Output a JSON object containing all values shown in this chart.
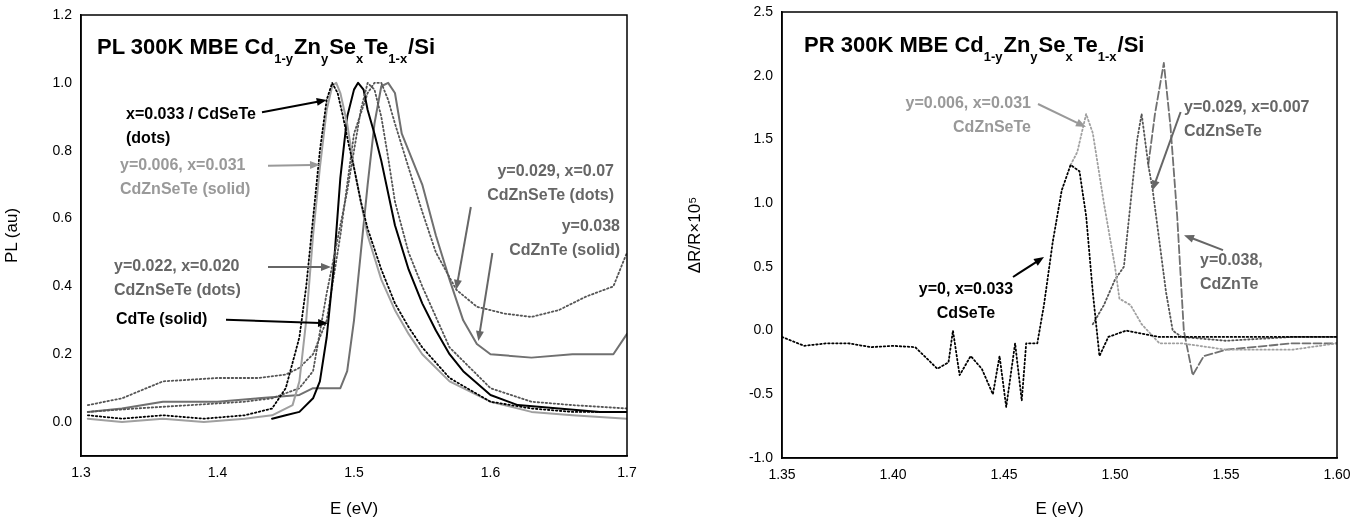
{
  "chart_data": [
    {
      "type": "line",
      "title": "PL 300K MBE Cd$_{1-y}$Zn$_{y}$Se$_{x}$Te$_{1-x}$/Si",
      "xlabel": "E (eV)",
      "ylabel": "PL (au)",
      "xlim": [
        1.3,
        1.7
      ],
      "xticks": [
        1.3,
        1.4,
        1.5,
        1.6,
        1.7
      ],
      "ylim": [
        -0.1,
        1.2
      ],
      "yticks": [
        {
          "value": 0,
          "label": "0.0"
        },
        0.2,
        0.4,
        0.6,
        0.8,
        {
          "value": 1,
          "label": "1.0"
        },
        1.2
      ],
      "grid": false,
      "legend": false,
      "marker": "none",
      "series": [
        {
          "color": "#000000",
          "line_style": "dotted",
          "x": [
            1.305,
            1.33,
            1.36,
            1.39,
            1.42,
            1.44,
            1.45,
            1.46,
            1.465,
            1.47,
            1.475,
            1.48,
            1.484,
            1.488,
            1.492,
            1.496,
            1.5,
            1.505,
            1.51,
            1.52,
            1.53,
            1.54,
            1.55,
            1.57,
            1.6,
            1.63,
            1.66,
            1.7
          ],
          "values": [
            0.02,
            0.01,
            0.02,
            0.01,
            0.02,
            0.04,
            0.1,
            0.25,
            0.4,
            0.6,
            0.8,
            0.95,
            1.0,
            0.97,
            0.9,
            0.82,
            0.75,
            0.65,
            0.57,
            0.45,
            0.35,
            0.28,
            0.22,
            0.13,
            0.06,
            0.04,
            0.03,
            0.03
          ]
        },
        {
          "color": "#a0a0a0",
          "line_style": "solid",
          "x": [
            1.305,
            1.33,
            1.36,
            1.39,
            1.42,
            1.44,
            1.455,
            1.46,
            1.465,
            1.47,
            1.475,
            1.48,
            1.484,
            1.487,
            1.49,
            1.495,
            1.5,
            1.505,
            1.51,
            1.52,
            1.53,
            1.54,
            1.55,
            1.57,
            1.6,
            1.63,
            1.66,
            1.7
          ],
          "values": [
            0.01,
            0.0,
            0.01,
            0.0,
            0.01,
            0.02,
            0.05,
            0.12,
            0.3,
            0.55,
            0.75,
            0.92,
            0.99,
            1.0,
            0.97,
            0.88,
            0.75,
            0.65,
            0.55,
            0.42,
            0.33,
            0.26,
            0.2,
            0.12,
            0.06,
            0.03,
            0.02,
            0.01
          ]
        },
        {
          "color": "#555555",
          "line_style": "dotted",
          "x": [
            1.305,
            1.34,
            1.38,
            1.42,
            1.44,
            1.46,
            1.47,
            1.48,
            1.485,
            1.49,
            1.495,
            1.5,
            1.505,
            1.51,
            1.515,
            1.52,
            1.525,
            1.53,
            1.54,
            1.55,
            1.57,
            1.6,
            1.63,
            1.66,
            1.7
          ],
          "values": [
            0.03,
            0.04,
            0.05,
            0.06,
            0.07,
            0.1,
            0.15,
            0.38,
            0.48,
            0.58,
            0.68,
            0.8,
            0.92,
            1.0,
            0.98,
            0.9,
            0.78,
            0.65,
            0.5,
            0.4,
            0.22,
            0.1,
            0.06,
            0.05,
            0.04
          ]
        },
        {
          "color": "#000000",
          "line_style": "solid",
          "x": [
            1.44,
            1.45,
            1.46,
            1.47,
            1.475,
            1.48,
            1.485,
            1.49,
            1.495,
            1.5,
            1.503,
            1.507,
            1.51,
            1.515,
            1.52,
            1.53,
            1.54,
            1.55,
            1.56,
            1.57,
            1.58,
            1.6,
            1.62,
            1.65,
            1.68,
            1.7
          ],
          "values": [
            0.01,
            0.02,
            0.03,
            0.07,
            0.12,
            0.25,
            0.45,
            0.72,
            0.9,
            0.98,
            1.0,
            0.98,
            0.92,
            0.85,
            0.77,
            0.58,
            0.45,
            0.35,
            0.27,
            0.2,
            0.15,
            0.08,
            0.05,
            0.04,
            0.03,
            0.03
          ]
        },
        {
          "color": "#555555",
          "line_style": "dotted",
          "x": [
            1.305,
            1.33,
            1.36,
            1.4,
            1.43,
            1.45,
            1.46,
            1.47,
            1.48,
            1.49,
            1.5,
            1.51,
            1.515,
            1.52,
            1.525,
            1.53,
            1.54,
            1.55,
            1.56,
            1.575,
            1.59,
            1.61,
            1.63,
            1.65,
            1.67,
            1.69,
            1.7
          ],
          "values": [
            0.05,
            0.07,
            0.12,
            0.13,
            0.13,
            0.14,
            0.16,
            0.2,
            0.3,
            0.55,
            0.85,
            0.97,
            1.0,
            1.0,
            0.95,
            0.88,
            0.75,
            0.62,
            0.5,
            0.39,
            0.34,
            0.32,
            0.31,
            0.33,
            0.37,
            0.4,
            0.5
          ]
        },
        {
          "color": "#707070",
          "line_style": "solid",
          "x": [
            1.305,
            1.33,
            1.36,
            1.4,
            1.43,
            1.46,
            1.47,
            1.48,
            1.49,
            1.495,
            1.5,
            1.505,
            1.51,
            1.515,
            1.52,
            1.525,
            1.53,
            1.535,
            1.54,
            1.55,
            1.56,
            1.57,
            1.58,
            1.59,
            1.6,
            1.63,
            1.66,
            1.69,
            1.7
          ],
          "values": [
            0.03,
            0.04,
            0.06,
            0.06,
            0.07,
            0.08,
            0.1,
            0.1,
            0.1,
            0.15,
            0.3,
            0.5,
            0.7,
            0.88,
            0.99,
            1.0,
            0.97,
            0.85,
            0.8,
            0.7,
            0.55,
            0.42,
            0.3,
            0.23,
            0.2,
            0.19,
            0.2,
            0.2,
            0.26
          ]
        }
      ],
      "annotations": [
        {
          "text": "x=0.033 / CdSeTe\n(dots)",
          "x": 1.48,
          "y": 0.95
        },
        "y=0.006, x=0.031\nCdZnSeTe (solid)",
        "y=0.022, x=0.020\nCdZnSeTe (dots)",
        {
          "text": "CdTe (solid)",
          "x": 1.481,
          "y": 0.29
        },
        {
          "text": "y=0.029, x=0.07\nCdZnSeTe (dots)",
          "x": 1.575,
          "y": 0.39
        },
        "y=0.038\nCdZnTe (solid)"
      ]
    },
    {
      "type": "line",
      "title": "PR 300K MBE Cd$_{1-y}$Zn$_{y}$Se$_{x}$Te$_{1-x}$/Si",
      "xlabel": "E (eV)",
      "ylabel": "ΔR/R×10⁵",
      "xlim": [
        1.35,
        1.6
      ],
      "xticks": [
        {
          "value": 1.35,
          "label": "1.35"
        },
        {
          "value": 1.4,
          "label": "1.40"
        },
        {
          "value": 1.45,
          "label": "1.45"
        },
        {
          "value": 1.5,
          "label": "1.50"
        },
        {
          "value": 1.55,
          "label": "1.55"
        },
        {
          "value": 1.6,
          "label": "1.60"
        }
      ],
      "ylim": [
        -1.0,
        2.5
      ],
      "yticks": [
        {
          "value": -1,
          "label": "-1.0"
        },
        -0.5,
        {
          "value": 0,
          "label": "0.0"
        },
        0.5,
        {
          "value": 1,
          "label": "1.0"
        },
        1.5,
        {
          "value": 2,
          "label": "2.0"
        },
        2.5
      ],
      "grid": false,
      "legend": false,
      "marker": "none",
      "series": [
        {
          "color": "#000000",
          "line_style": "dotted",
          "x": [
            1.35,
            1.36,
            1.37,
            1.38,
            1.39,
            1.4,
            1.41,
            1.42,
            1.425,
            1.427,
            1.43,
            1.435,
            1.44,
            1.445,
            1.448,
            1.451,
            1.455,
            1.458,
            1.46,
            1.465,
            1.468,
            1.472,
            1.476,
            1.48,
            1.484,
            1.487,
            1.49,
            1.493,
            1.497,
            1.505,
            1.52,
            1.55,
            1.58,
            1.6
          ],
          "values": [
            -0.05,
            -0.12,
            -0.1,
            -0.1,
            -0.13,
            -0.12,
            -0.13,
            -0.3,
            -0.25,
            0.0,
            -0.35,
            -0.2,
            -0.3,
            -0.5,
            -0.2,
            -0.6,
            -0.1,
            -0.55,
            -0.1,
            -0.1,
            0.2,
            0.7,
            1.1,
            1.3,
            1.25,
            0.9,
            0.3,
            -0.2,
            -0.05,
            0.0,
            -0.05,
            -0.05,
            -0.05,
            -0.05
          ]
        },
        {
          "color": "#a0a0a0",
          "line_style": "dotted",
          "x": [
            1.48,
            1.483,
            1.487,
            1.49,
            1.495,
            1.5,
            1.502,
            1.507,
            1.512,
            1.52,
            1.53,
            1.55,
            1.58,
            1.6
          ],
          "values": [
            1.3,
            1.4,
            1.7,
            1.55,
            1.0,
            0.5,
            0.25,
            0.2,
            0.05,
            -0.1,
            -0.1,
            -0.15,
            -0.15,
            -0.1
          ]
        },
        {
          "color": "#555555",
          "line_style": "dotted",
          "x": [
            1.49,
            1.495,
            1.5,
            1.504,
            1.507,
            1.51,
            1.512,
            1.515,
            1.517,
            1.52,
            1.523,
            1.526,
            1.53,
            1.55,
            1.58,
            1.6
          ],
          "values": [
            0.05,
            0.2,
            0.4,
            0.5,
            1.0,
            1.5,
            1.7,
            1.3,
            1.1,
            0.7,
            0.3,
            0.0,
            -0.05,
            -0.08,
            -0.05,
            -0.05
          ]
        },
        {
          "color": "#707070",
          "line_style": "dashed",
          "x": [
            1.515,
            1.518,
            1.522,
            1.525,
            1.528,
            1.531,
            1.535,
            1.54,
            1.55,
            1.58,
            1.6
          ],
          "values": [
            1.3,
            1.7,
            2.1,
            1.6,
            0.9,
            0.0,
            -0.35,
            -0.2,
            -0.15,
            -0.1,
            -0.1
          ]
        }
      ],
      "annotations": [
        "y=0.006, x=0.031\nCdZnSeTe",
        {
          "text": "y=0.029, x=0.007\nCdZnSeTe",
          "x": 1.517,
          "y": 1.1
        },
        "y=0.038,\nCdZnTe",
        "y=0, x=0.033\nCdSeTe"
      ]
    }
  ]
}
